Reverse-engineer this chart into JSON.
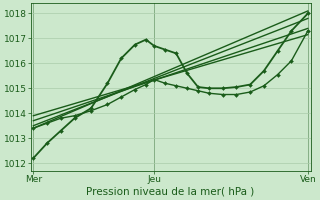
{
  "background_color": "#cce8cc",
  "grid_color": "#aaccaa",
  "line_color": "#1a5c1a",
  "xlabel": "Pression niveau de la mer( hPa )",
  "xlabel_fontsize": 7.5,
  "ytick_labels": [
    1012,
    1013,
    1014,
    1015,
    1016,
    1017,
    1018
  ],
  "ylim": [
    1011.7,
    1018.4
  ],
  "xlim": [
    -0.01,
    1.01
  ],
  "xtick_positions": [
    0.0,
    0.44,
    1.0
  ],
  "xtick_labels": [
    "Mer",
    "Jeu",
    "Ven"
  ],
  "vlines": [
    0.0,
    0.44,
    1.0
  ],
  "series": [
    {
      "x": [
        0.0,
        0.05,
        0.1,
        0.15,
        0.21,
        0.27,
        0.32,
        0.37,
        0.41,
        0.44,
        0.48,
        0.52,
        0.56,
        0.6,
        0.64,
        0.69,
        0.74,
        0.79,
        0.84,
        0.89,
        0.94,
        1.0
      ],
      "y": [
        1012.2,
        1012.8,
        1013.3,
        1013.8,
        1014.2,
        1015.2,
        1016.2,
        1016.75,
        1016.95,
        1016.7,
        1016.55,
        1016.4,
        1015.6,
        1015.05,
        1015.0,
        1015.0,
        1015.05,
        1015.15,
        1015.7,
        1016.5,
        1017.3,
        1018.0
      ],
      "marker": true,
      "lw": 1.3
    },
    {
      "x": [
        0.0,
        0.05,
        0.1,
        0.15,
        0.21,
        0.27,
        0.32,
        0.37,
        0.41,
        0.44,
        0.48,
        0.52,
        0.56,
        0.6,
        0.64,
        0.69,
        0.74,
        0.79,
        0.84,
        0.89,
        0.94,
        1.0
      ],
      "y": [
        1013.4,
        1013.6,
        1013.8,
        1013.9,
        1014.1,
        1014.35,
        1014.65,
        1014.95,
        1015.15,
        1015.35,
        1015.2,
        1015.1,
        1015.0,
        1014.9,
        1014.8,
        1014.75,
        1014.75,
        1014.85,
        1015.1,
        1015.55,
        1016.1,
        1017.3
      ],
      "marker": true,
      "lw": 1.0
    },
    {
      "x": [
        0.0,
        1.0
      ],
      "y": [
        1013.4,
        1018.1
      ],
      "marker": false,
      "lw": 1.0
    },
    {
      "x": [
        0.0,
        1.0
      ],
      "y": [
        1013.5,
        1017.8
      ],
      "marker": false,
      "lw": 1.0
    },
    {
      "x": [
        0.0,
        1.0
      ],
      "y": [
        1013.7,
        1017.4
      ],
      "marker": false,
      "lw": 1.0
    },
    {
      "x": [
        0.0,
        1.0
      ],
      "y": [
        1013.9,
        1017.15
      ],
      "marker": false,
      "lw": 1.0
    }
  ]
}
